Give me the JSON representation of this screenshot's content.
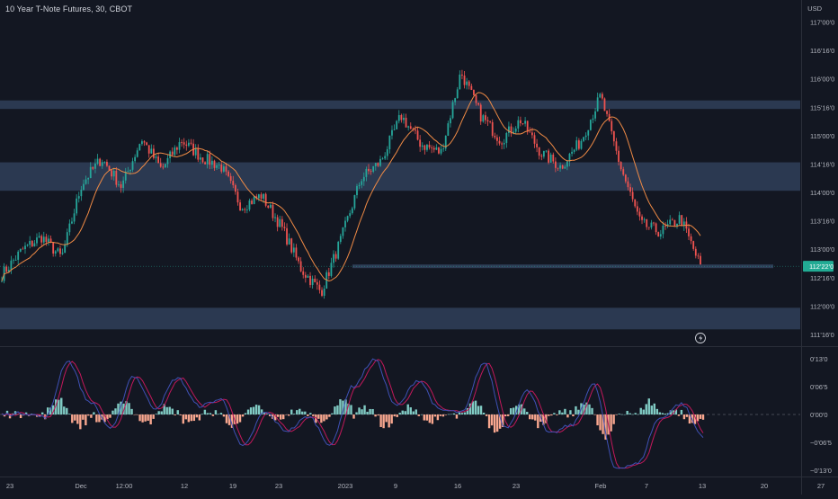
{
  "header": {
    "title": "10 Year T-Note Futures, 30, CBOT",
    "currency": "USD"
  },
  "colors": {
    "background": "#131722",
    "zone": "#2e3d56",
    "candle_up": "#26a69a",
    "candle_down": "#ef5350",
    "ma": "#ef8a45",
    "price_badge": "#22ab94",
    "osc_line_1": "#3f51b5",
    "osc_line_2": "#c2185b",
    "hist_up": "#80cbc4",
    "hist_down": "#f9a78f",
    "axis_text": "#b2b5be"
  },
  "chart_data": [
    {
      "type": "candlestick",
      "name": "price",
      "current_price": "112'22'0",
      "y_axis_labels": [
        "117'00'0",
        "116'16'0",
        "116'00'0",
        "115'16'0",
        "115'00'0",
        "114'16'0",
        "114'00'0",
        "113'16'0",
        "113'00'0",
        "112'16'0",
        "112'00'0",
        "111'16'0"
      ],
      "x_axis_labels": [
        "23",
        "Dec",
        "12:00",
        "12",
        "19",
        "23",
        "2023",
        "9",
        "16",
        "23",
        "Feb",
        "7",
        "13",
        "20",
        "27"
      ],
      "zones": [
        {
          "from": 115.47,
          "to": 115.62
        },
        {
          "from": 114.03,
          "to": 114.53
        },
        {
          "from": 111.59,
          "to": 111.97
        }
      ],
      "support_line": 112.7,
      "approx_path": [
        {
          "x": "23",
          "y": 112.55
        },
        {
          "x": "",
          "y": 112.98
        },
        {
          "x": "",
          "y": 113.22
        },
        {
          "x": "",
          "y": 112.85
        },
        {
          "x": "Dec",
          "y": 114.15
        },
        {
          "x": "",
          "y": 114.6
        },
        {
          "x": "12:00",
          "y": 114.1
        },
        {
          "x": "",
          "y": 114.95
        },
        {
          "x": "",
          "y": 114.4
        },
        {
          "x": "12",
          "y": 114.92
        },
        {
          "x": "",
          "y": 114.62
        },
        {
          "x": "19",
          "y": 114.45
        },
        {
          "x": "",
          "y": 113.75
        },
        {
          "x": "",
          "y": 113.95
        },
        {
          "x": "23",
          "y": 113.4
        },
        {
          "x": "",
          "y": 112.65
        },
        {
          "x": "2023",
          "y": 112.25
        },
        {
          "x": "",
          "y": 113.18
        },
        {
          "x": "9",
          "y": 114.25
        },
        {
          "x": "",
          "y": 114.55
        },
        {
          "x": "",
          "y": 115.35
        },
        {
          "x": "16",
          "y": 114.85
        },
        {
          "x": "",
          "y": 114.7
        },
        {
          "x": "",
          "y": 116.12
        },
        {
          "x": "23",
          "y": 115.35
        },
        {
          "x": "",
          "y": 114.92
        },
        {
          "x": "",
          "y": 115.28
        },
        {
          "x": "",
          "y": 114.7
        },
        {
          "x": "Feb",
          "y": 114.45
        },
        {
          "x": "",
          "y": 114.9
        },
        {
          "x": "",
          "y": 115.7
        },
        {
          "x": "7",
          "y": 114.45
        },
        {
          "x": "",
          "y": 113.45
        },
        {
          "x": "",
          "y": 113.3
        },
        {
          "x": "",
          "y": 113.55
        },
        {
          "x": "13",
          "y": 112.7
        }
      ]
    },
    {
      "type": "line",
      "name": "oscillator",
      "y_axis_labels": [
        "0'13'0",
        "0'06'5",
        "0'00'0",
        "−0'06'5",
        "−0'13'0"
      ],
      "approx_path": [
        {
          "x": "23",
          "y": 0.0
        },
        {
          "x": "",
          "y": 0.3
        },
        {
          "x": "",
          "y": -0.6
        },
        {
          "x": "Dec",
          "y": 12.5
        },
        {
          "x": "",
          "y": 3.0
        },
        {
          "x": "12:00",
          "y": -3.2
        },
        {
          "x": "",
          "y": 9.0
        },
        {
          "x": "",
          "y": 1.5
        },
        {
          "x": "",
          "y": 8.5
        },
        {
          "x": "12",
          "y": 2.0
        },
        {
          "x": "19",
          "y": 3.5
        },
        {
          "x": "",
          "y": -7.5
        },
        {
          "x": "",
          "y": 0.5
        },
        {
          "x": "23",
          "y": -3.8
        },
        {
          "x": "",
          "y": -0.5
        },
        {
          "x": "2023",
          "y": -7.0
        },
        {
          "x": "",
          "y": 6.5
        },
        {
          "x": "9",
          "y": 12.8
        },
        {
          "x": "",
          "y": 2.0
        },
        {
          "x": "",
          "y": 8.0
        },
        {
          "x": "16",
          "y": 1.0
        },
        {
          "x": "",
          "y": 0.5
        },
        {
          "x": "",
          "y": 12.0
        },
        {
          "x": "23",
          "y": -3.0
        },
        {
          "x": "",
          "y": 5.5
        },
        {
          "x": "",
          "y": -4.5
        },
        {
          "x": "Feb",
          "y": -2.5
        },
        {
          "x": "",
          "y": 7.0
        },
        {
          "x": "",
          "y": -12.5
        },
        {
          "x": "7",
          "y": -11.5
        },
        {
          "x": "",
          "y": -1.0
        },
        {
          "x": "",
          "y": 2.5
        },
        {
          "x": "13",
          "y": -5.0
        }
      ]
    }
  ]
}
